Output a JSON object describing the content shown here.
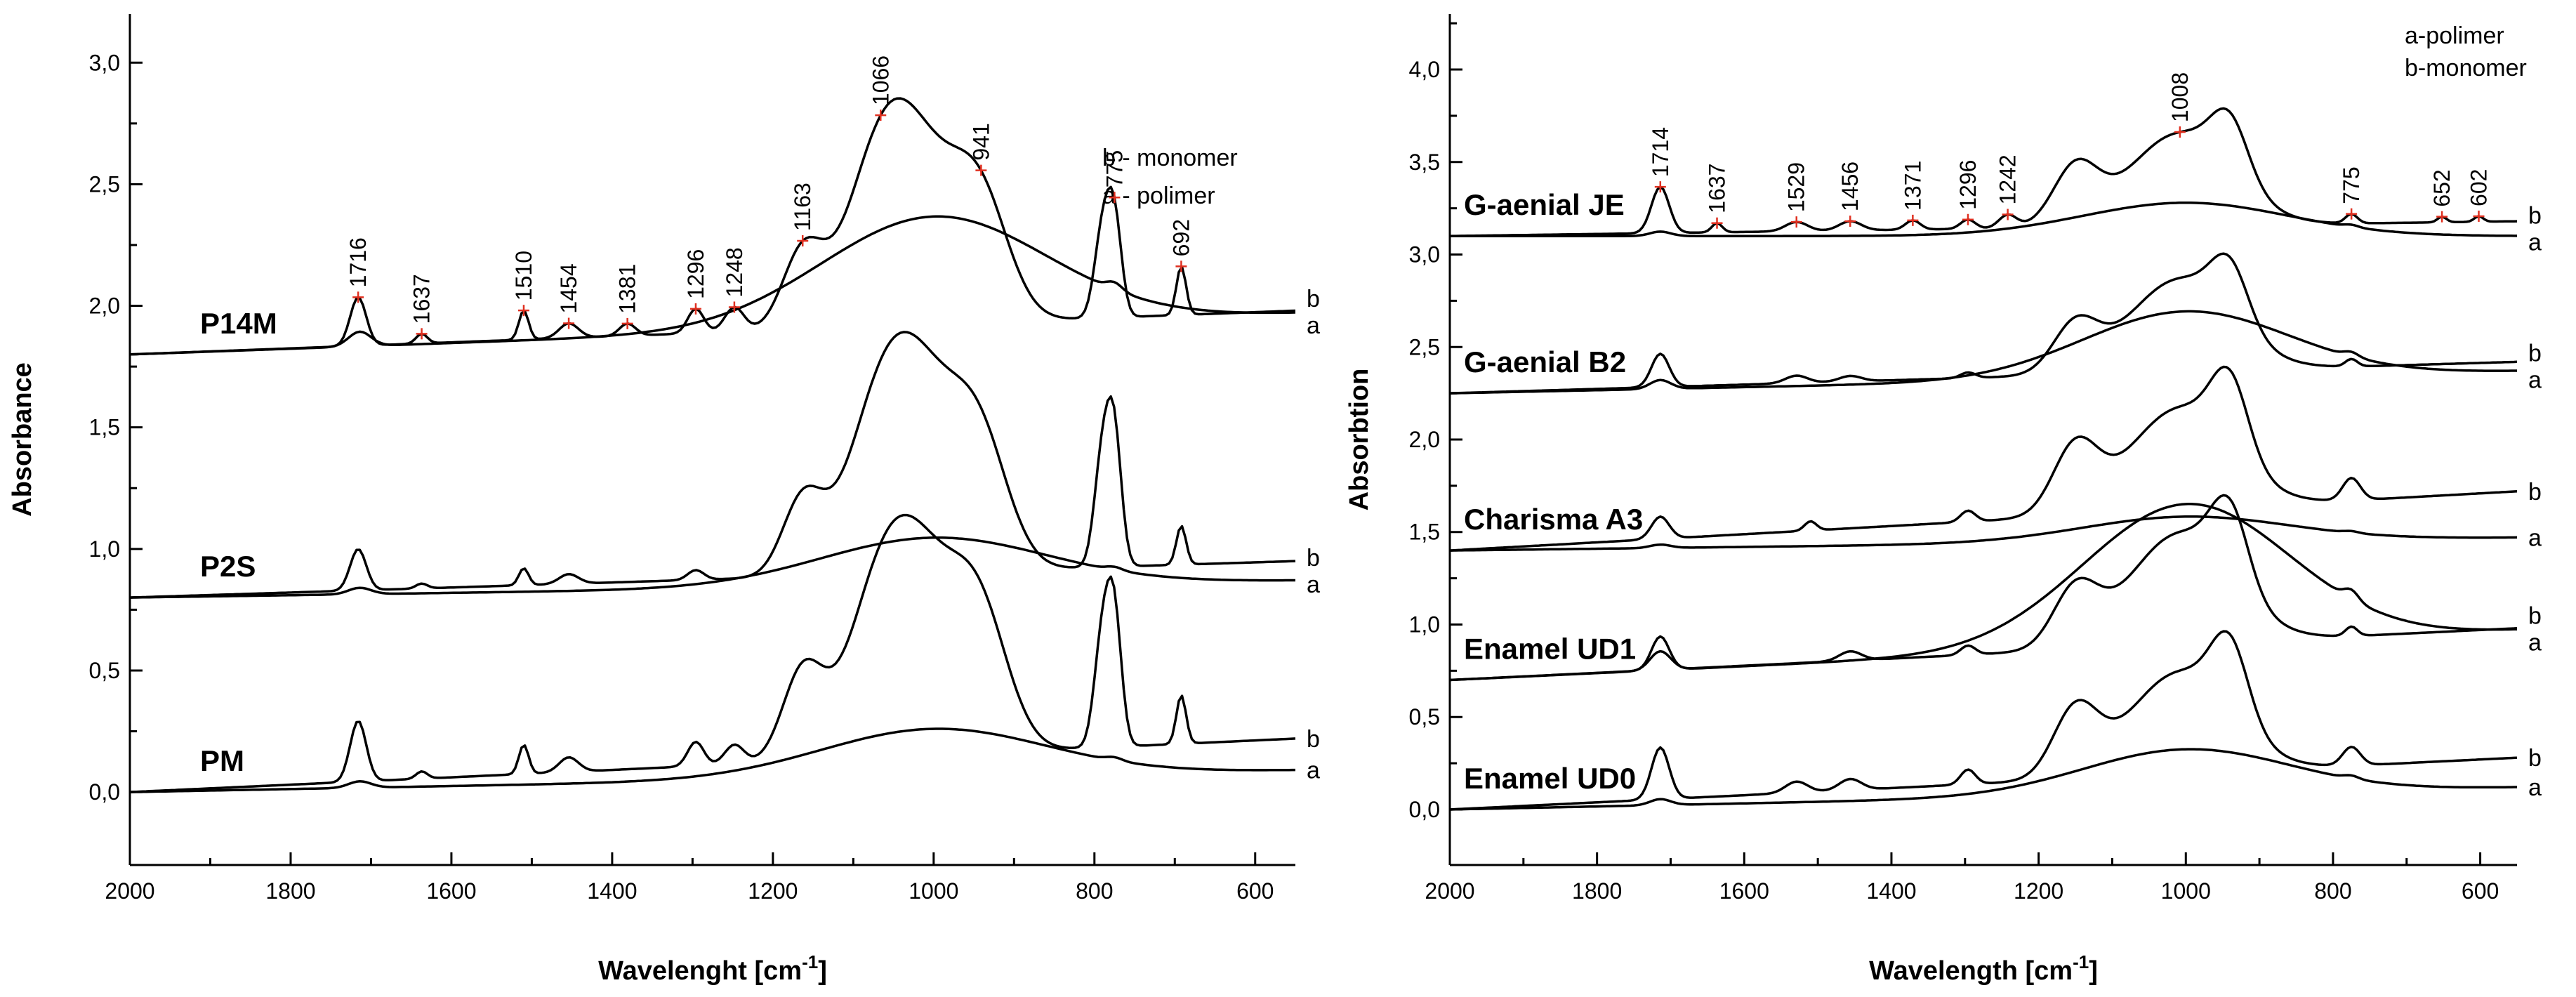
{
  "chart_data": [
    {
      "type": "line",
      "xlabel": "Wavelenght [cm-1]",
      "xlabel_text": "Wavelenght [cm",
      "xlabel_sup": "-1",
      "xlabel_close": "]",
      "ylabel": "Absorbance",
      "xlim": [
        2000,
        550
      ],
      "ylim": [
        -0.3,
        3.2
      ],
      "x_ticks": [
        "2000",
        "1800",
        "1600",
        "1400",
        "1200",
        "1000",
        "800",
        "600"
      ],
      "y_ticks": [
        "0,0",
        "0,5",
        "1,0",
        "1,5",
        "2,0",
        "2,5",
        "3,0"
      ],
      "legend": [
        "b - monomer",
        "a - polimer"
      ],
      "series": [
        {
          "name": "P14M",
          "baseline": 1.8,
          "a_scale": 0.5,
          "a_end": 0.17,
          "b_end": 0.18,
          "peaks": [
            [
              1716,
              0.2,
              10
            ],
            [
              1637,
              0.04,
              7
            ],
            [
              1510,
              0.12,
              6
            ],
            [
              1454,
              0.06,
              12
            ],
            [
              1381,
              0.05,
              10
            ],
            [
              1296,
              0.1,
              10
            ],
            [
              1248,
              0.1,
              12
            ],
            [
              1163,
              0.3,
              25
            ],
            [
              1066,
              0.6,
              45
            ],
            [
              1010,
              0.5,
              50
            ],
            [
              941,
              0.42,
              35
            ],
            [
              790,
              0.35,
              10
            ],
            [
              775,
              0.38,
              9
            ],
            [
              692,
              0.2,
              6
            ]
          ],
          "peak_labels": [
            "1716",
            "1637",
            "1510",
            "1454",
            "1381",
            "1296",
            "1248",
            "1163",
            "1066",
            "941",
            "775",
            "692"
          ],
          "label_b": "b",
          "label_a": "a"
        },
        {
          "name": "P2S",
          "baseline": 0.8,
          "a_scale": 0.22,
          "a_end": 0.07,
          "b_end": 0.15,
          "peaks": [
            [
              1716,
              0.17,
              10
            ],
            [
              1637,
              0.02,
              7
            ],
            [
              1510,
              0.07,
              6
            ],
            [
              1454,
              0.04,
              12
            ],
            [
              1296,
              0.04,
              10
            ],
            [
              1163,
              0.3,
              25
            ],
            [
              1066,
              0.55,
              45
            ],
            [
              1010,
              0.62,
              50
            ],
            [
              941,
              0.42,
              35
            ],
            [
              790,
              0.45,
              10
            ],
            [
              775,
              0.5,
              9
            ],
            [
              692,
              0.16,
              6
            ]
          ],
          "peak_labels": [],
          "label_b": "b",
          "label_a": "a"
        },
        {
          "name": "PM",
          "baseline": 0.0,
          "a_scale": 0.22,
          "a_end": 0.09,
          "b_end": 0.22,
          "peaks": [
            [
              1716,
              0.25,
              10
            ],
            [
              1637,
              0.03,
              7
            ],
            [
              1510,
              0.12,
              6
            ],
            [
              1454,
              0.06,
              12
            ],
            [
              1296,
              0.1,
              10
            ],
            [
              1248,
              0.08,
              12
            ],
            [
              1163,
              0.35,
              25
            ],
            [
              1066,
              0.55,
              45
            ],
            [
              1010,
              0.62,
              50
            ],
            [
              941,
              0.45,
              35
            ],
            [
              790,
              0.45,
              10
            ],
            [
              775,
              0.5,
              9
            ],
            [
              692,
              0.2,
              6
            ]
          ],
          "peak_labels": [],
          "label_b": "b",
          "label_a": "a"
        }
      ]
    },
    {
      "type": "line",
      "xlabel": "Wavelength [cm-1]",
      "xlabel_text": "Wavelength [cm",
      "xlabel_sup": "-1",
      "xlabel_close": "]",
      "ylabel": "Absorbtion",
      "xlim": [
        2000,
        550
      ],
      "ylim": [
        -0.3,
        4.3
      ],
      "x_ticks": [
        "2000",
        "1800",
        "1600",
        "1400",
        "1200",
        "1000",
        "800",
        "600"
      ],
      "y_ticks": [
        "0,0",
        "0,5",
        "1,0",
        "1,5",
        "2,0",
        "2,5",
        "3,0",
        "3,5",
        "4,0"
      ],
      "legend": [
        "a-polimer",
        "b-monomer"
      ],
      "series": [
        {
          "name": "G-aenial JE",
          "baseline": 3.1,
          "a_scale": 0.2,
          "a_end": 0.0,
          "b_end": 0.08,
          "peaks": [
            [
              1714,
              0.25,
              12
            ],
            [
              1637,
              0.05,
              7
            ],
            [
              1529,
              0.05,
              15
            ],
            [
              1456,
              0.05,
              15
            ],
            [
              1371,
              0.05,
              10
            ],
            [
              1296,
              0.05,
              10
            ],
            [
              1242,
              0.07,
              12
            ],
            [
              1150,
              0.3,
              30
            ],
            [
              1008,
              0.5,
              70
            ],
            [
              940,
              0.3,
              25
            ],
            [
              775,
              0.05,
              8
            ],
            [
              652,
              0.03,
              6
            ],
            [
              602,
              0.03,
              6
            ]
          ],
          "peak_labels": [
            "1714",
            "1637",
            "1529",
            "1456",
            "1371",
            "1296",
            "1242",
            "1008",
            "775",
            "652",
            "602"
          ],
          "label_b": "b",
          "label_a": "a"
        },
        {
          "name": "G-aenial B2",
          "baseline": 2.25,
          "a_scale": 0.4,
          "a_end": 0.12,
          "b_end": 0.17,
          "peaks": [
            [
              1714,
              0.18,
              12
            ],
            [
              1529,
              0.04,
              15
            ],
            [
              1456,
              0.03,
              15
            ],
            [
              1296,
              0.03,
              10
            ],
            [
              1150,
              0.25,
              30
            ],
            [
              1008,
              0.5,
              70
            ],
            [
              940,
              0.3,
              25
            ],
            [
              775,
              0.04,
              8
            ]
          ],
          "peak_labels": [],
          "label_b": "b",
          "label_a": "a"
        },
        {
          "name": "Charisma A3",
          "baseline": 1.4,
          "a_scale": 0.15,
          "a_end": 0.07,
          "b_end": 0.32,
          "peaks": [
            [
              1714,
              0.12,
              12
            ],
            [
              1510,
              0.05,
              8
            ],
            [
              1296,
              0.06,
              10
            ],
            [
              1150,
              0.35,
              30
            ],
            [
              1008,
              0.55,
              70
            ],
            [
              940,
              0.4,
              25
            ],
            [
              775,
              0.12,
              12
            ]
          ],
          "peak_labels": [],
          "label_b": "b",
          "label_a": "a"
        },
        {
          "name": "Enamel UD1",
          "baseline": 0.7,
          "a_scale": 0.85,
          "a_end": 0.27,
          "b_end": 0.28,
          "peaks": [
            [
              1714,
              0.18,
              12
            ],
            [
              1456,
              0.05,
              15
            ],
            [
              1296,
              0.05,
              10
            ],
            [
              1150,
              0.3,
              30
            ],
            [
              1008,
              0.6,
              70
            ],
            [
              940,
              0.4,
              25
            ],
            [
              775,
              0.05,
              8
            ]
          ],
          "peak_labels": [],
          "label_b": "b",
          "label_a": "a"
        },
        {
          "name": "Enamel UD0",
          "baseline": 0.0,
          "a_scale": 0.27,
          "a_end": 0.12,
          "b_end": 0.28,
          "peaks": [
            [
              1714,
              0.28,
              12
            ],
            [
              1529,
              0.06,
              15
            ],
            [
              1456,
              0.06,
              15
            ],
            [
              1296,
              0.08,
              10
            ],
            [
              1150,
              0.35,
              30
            ],
            [
              1008,
              0.55,
              70
            ],
            [
              940,
              0.4,
              25
            ],
            [
              775,
              0.1,
              12
            ]
          ],
          "peak_labels": [],
          "label_b": "b",
          "label_a": "a"
        }
      ]
    }
  ]
}
